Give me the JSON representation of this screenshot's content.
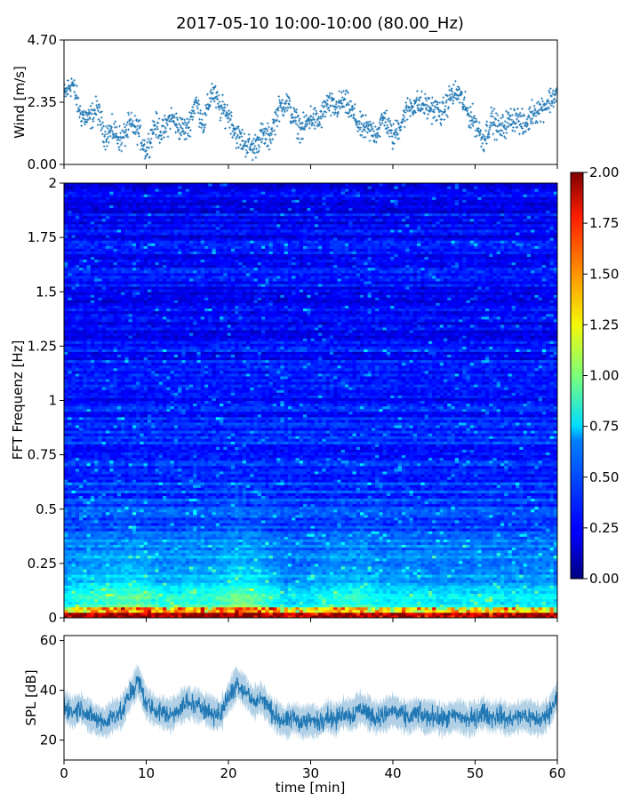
{
  "figure": {
    "title": "2017-05-10 10:00-10:00 (80.00_Hz)"
  },
  "chart_data": [
    {
      "type": "scatter",
      "panel": "wind",
      "title": "",
      "xlabel": "",
      "ylabel": "Wind [m/s]",
      "xlim": [
        0,
        60
      ],
      "ylim": [
        0,
        4.7
      ],
      "y_ticks": [
        "0.00",
        "2.35",
        "4.70"
      ],
      "color": "#1f77b4",
      "series": [
        {
          "trend": [
            {
              "t": 0,
              "y": 2.6
            },
            {
              "t": 1,
              "y": 3.1
            },
            {
              "t": 2,
              "y": 1.9
            },
            {
              "t": 3,
              "y": 1.7
            },
            {
              "t": 4,
              "y": 2.1
            },
            {
              "t": 5,
              "y": 1.1
            },
            {
              "t": 6,
              "y": 1.3
            },
            {
              "t": 7,
              "y": 0.9
            },
            {
              "t": 8,
              "y": 1.5
            },
            {
              "t": 9,
              "y": 1.3
            },
            {
              "t": 10,
              "y": 0.5
            },
            {
              "t": 11,
              "y": 1.5
            },
            {
              "t": 12,
              "y": 1.2
            },
            {
              "t": 13,
              "y": 1.8
            },
            {
              "t": 14,
              "y": 1.4
            },
            {
              "t": 15,
              "y": 1.3
            },
            {
              "t": 16,
              "y": 2.4
            },
            {
              "t": 17,
              "y": 1.5
            },
            {
              "t": 18,
              "y": 2.8
            },
            {
              "t": 19,
              "y": 2.1
            },
            {
              "t": 20,
              "y": 1.9
            },
            {
              "t": 21,
              "y": 1.1
            },
            {
              "t": 22,
              "y": 0.8
            },
            {
              "t": 23,
              "y": 0.6
            },
            {
              "t": 24,
              "y": 1.1
            },
            {
              "t": 25,
              "y": 1.0
            },
            {
              "t": 26,
              "y": 2.0
            },
            {
              "t": 27,
              "y": 2.4
            },
            {
              "t": 28,
              "y": 1.7
            },
            {
              "t": 29,
              "y": 1.3
            },
            {
              "t": 30,
              "y": 1.8
            },
            {
              "t": 31,
              "y": 1.6
            },
            {
              "t": 32,
              "y": 2.3
            },
            {
              "t": 33,
              "y": 2.1
            },
            {
              "t": 34,
              "y": 2.4
            },
            {
              "t": 35,
              "y": 2.0
            },
            {
              "t": 36,
              "y": 1.4
            },
            {
              "t": 37,
              "y": 1.3
            },
            {
              "t": 38,
              "y": 1.2
            },
            {
              "t": 39,
              "y": 1.8
            },
            {
              "t": 40,
              "y": 1.0
            },
            {
              "t": 41,
              "y": 1.6
            },
            {
              "t": 42,
              "y": 2.2
            },
            {
              "t": 43,
              "y": 2.3
            },
            {
              "t": 44,
              "y": 2.2
            },
            {
              "t": 45,
              "y": 2.1
            },
            {
              "t": 46,
              "y": 1.9
            },
            {
              "t": 47,
              "y": 2.6
            },
            {
              "t": 48,
              "y": 2.7
            },
            {
              "t": 49,
              "y": 2.0
            },
            {
              "t": 50,
              "y": 1.6
            },
            {
              "t": 51,
              "y": 0.9
            },
            {
              "t": 52,
              "y": 1.7
            },
            {
              "t": 53,
              "y": 1.3
            },
            {
              "t": 54,
              "y": 1.6
            },
            {
              "t": 55,
              "y": 1.8
            },
            {
              "t": 56,
              "y": 1.4
            },
            {
              "t": 57,
              "y": 2.0
            },
            {
              "t": 58,
              "y": 2.1
            },
            {
              "t": 59,
              "y": 2.4
            },
            {
              "t": 60,
              "y": 2.7
            }
          ]
        }
      ]
    },
    {
      "type": "heatmap",
      "panel": "spectrogram",
      "title": "",
      "xlabel": "",
      "ylabel": "FFT Frequenz [Hz]",
      "xlim": [
        0,
        60
      ],
      "ylim": [
        0,
        2
      ],
      "y_ticks": [
        "0",
        "0.25",
        "0.5",
        "0.75",
        "1",
        "1.25",
        "1.5",
        "1.75",
        "2"
      ],
      "colormap": "jet",
      "clim": [
        0,
        2
      ],
      "colorbar_ticks": [
        "0.00",
        "0.25",
        "0.50",
        "0.75",
        "1.00",
        "1.25",
        "1.50",
        "1.75",
        "2.00"
      ],
      "profile": [
        {
          "t": 0,
          "v": 0.55
        },
        {
          "t": 3,
          "v": 0.7
        },
        {
          "t": 6,
          "v": 0.75
        },
        {
          "t": 9,
          "v": 0.85
        },
        {
          "t": 12,
          "v": 0.6
        },
        {
          "t": 15,
          "v": 0.7
        },
        {
          "t": 18,
          "v": 0.65
        },
        {
          "t": 21,
          "v": 0.95
        },
        {
          "t": 24,
          "v": 0.8
        },
        {
          "t": 27,
          "v": 0.45
        },
        {
          "t": 30,
          "v": 0.5
        },
        {
          "t": 33,
          "v": 0.65
        },
        {
          "t": 36,
          "v": 0.7
        },
        {
          "t": 39,
          "v": 0.5
        },
        {
          "t": 42,
          "v": 0.55
        },
        {
          "t": 45,
          "v": 0.5
        },
        {
          "t": 48,
          "v": 0.5
        },
        {
          "t": 51,
          "v": 0.55
        },
        {
          "t": 54,
          "v": 0.5
        },
        {
          "t": 57,
          "v": 0.5
        },
        {
          "t": 60,
          "v": 0.5
        }
      ]
    },
    {
      "type": "line",
      "panel": "spl",
      "title": "",
      "xlabel": "time [min]",
      "ylabel": "SPL [dB]",
      "xlim": [
        0,
        60
      ],
      "ylim": [
        12,
        62
      ],
      "x_ticks": [
        "0",
        "10",
        "20",
        "30",
        "40",
        "50",
        "60"
      ],
      "y_ticks": [
        "20",
        "40",
        "60"
      ],
      "color": "#1f77b4",
      "series": [
        {
          "trend": [
            {
              "t": 0,
              "y": 34
            },
            {
              "t": 1,
              "y": 31
            },
            {
              "t": 2,
              "y": 33
            },
            {
              "t": 3,
              "y": 30
            },
            {
              "t": 4,
              "y": 28
            },
            {
              "t": 5,
              "y": 27
            },
            {
              "t": 6,
              "y": 30
            },
            {
              "t": 7,
              "y": 31
            },
            {
              "t": 8,
              "y": 38
            },
            {
              "t": 9,
              "y": 44
            },
            {
              "t": 10,
              "y": 35
            },
            {
              "t": 11,
              "y": 32
            },
            {
              "t": 12,
              "y": 31
            },
            {
              "t": 13,
              "y": 30
            },
            {
              "t": 14,
              "y": 33
            },
            {
              "t": 15,
              "y": 35
            },
            {
              "t": 16,
              "y": 34
            },
            {
              "t": 17,
              "y": 33
            },
            {
              "t": 18,
              "y": 31
            },
            {
              "t": 19,
              "y": 30
            },
            {
              "t": 20,
              "y": 37
            },
            {
              "t": 21,
              "y": 43
            },
            {
              "t": 22,
              "y": 40
            },
            {
              "t": 23,
              "y": 35
            },
            {
              "t": 24,
              "y": 37
            },
            {
              "t": 25,
              "y": 32
            },
            {
              "t": 26,
              "y": 29
            },
            {
              "t": 27,
              "y": 27
            },
            {
              "t": 28,
              "y": 29
            },
            {
              "t": 29,
              "y": 27
            },
            {
              "t": 30,
              "y": 28
            },
            {
              "t": 31,
              "y": 27
            },
            {
              "t": 32,
              "y": 30
            },
            {
              "t": 33,
              "y": 28
            },
            {
              "t": 34,
              "y": 31
            },
            {
              "t": 35,
              "y": 30
            },
            {
              "t": 36,
              "y": 33
            },
            {
              "t": 37,
              "y": 31
            },
            {
              "t": 38,
              "y": 29
            },
            {
              "t": 39,
              "y": 30
            },
            {
              "t": 40,
              "y": 32
            },
            {
              "t": 41,
              "y": 30
            },
            {
              "t": 42,
              "y": 29
            },
            {
              "t": 43,
              "y": 31
            },
            {
              "t": 44,
              "y": 29
            },
            {
              "t": 45,
              "y": 30
            },
            {
              "t": 46,
              "y": 28
            },
            {
              "t": 47,
              "y": 29
            },
            {
              "t": 48,
              "y": 30
            },
            {
              "t": 49,
              "y": 28
            },
            {
              "t": 50,
              "y": 29
            },
            {
              "t": 51,
              "y": 31
            },
            {
              "t": 52,
              "y": 29
            },
            {
              "t": 53,
              "y": 30
            },
            {
              "t": 54,
              "y": 28
            },
            {
              "t": 55,
              "y": 29
            },
            {
              "t": 56,
              "y": 30
            },
            {
              "t": 57,
              "y": 29
            },
            {
              "t": 58,
              "y": 28
            },
            {
              "t": 59,
              "y": 31
            },
            {
              "t": 60,
              "y": 38
            }
          ]
        }
      ]
    }
  ]
}
